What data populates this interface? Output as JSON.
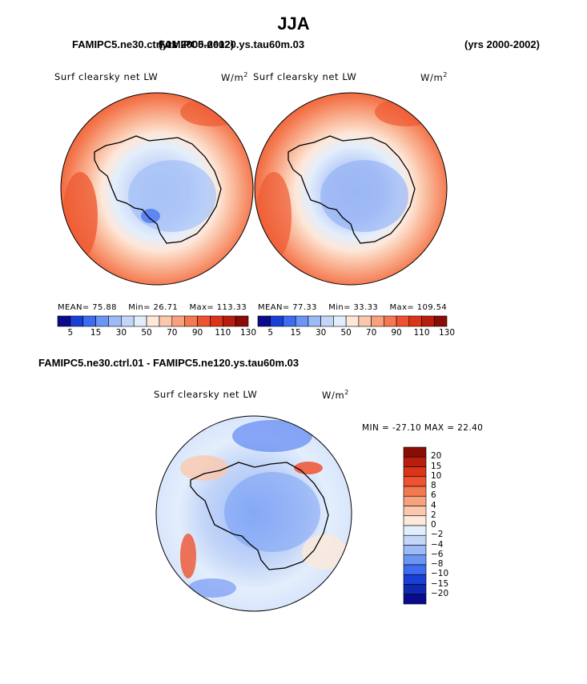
{
  "main_title": "JJA",
  "panels": [
    {
      "case": "FAMIPC5.ne30.ctrl.01",
      "years": "(yrs 2000-2002)",
      "variable": "Surf clearsky net LW",
      "units": "W/m",
      "units_sup": "2",
      "stats": {
        "mean_label": "MEAN=",
        "mean": "75.88",
        "min_label": "Min=",
        "min": "26.71",
        "max_label": "Max=",
        "max": "113.33"
      }
    },
    {
      "case": "FAMIPC5.ne120.ys.tau60m.03",
      "years": "(yrs 2000-2002)",
      "variable": "Surf clearsky net LW",
      "units": "W/m",
      "units_sup": "2",
      "stats": {
        "mean_label": "MEAN=",
        "mean": "77.33",
        "min_label": "Min=",
        "min": "33.33",
        "max_label": "Max=",
        "max": "109.54"
      }
    }
  ],
  "field_colorbar": {
    "labels": [
      "5",
      "15",
      "30",
      "50",
      "70",
      "90",
      "110",
      "130"
    ],
    "colors": [
      "#0a0a8c",
      "#1a3fd6",
      "#3d6cf0",
      "#6a95f5",
      "#9bbaf7",
      "#c4d6f8",
      "#e3eefc",
      "#fde8da",
      "#fbc8ad",
      "#f8a17e",
      "#f47950",
      "#ee5230",
      "#dc3418",
      "#b81e0e",
      "#8a0c06"
    ]
  },
  "diff_panel": {
    "title": "FAMIPC5.ne30.ctrl.01 - FAMIPC5.ne120.ys.tau60m.03",
    "variable": "Surf clearsky net LW",
    "units": "W/m",
    "units_sup": "2",
    "minmax_text": "MIN = -27.10 MAX =  22.40",
    "colorbar": {
      "labels": [
        "20",
        "15",
        "10",
        "8",
        "6",
        "4",
        "2",
        "0",
        "-2",
        "-4",
        "-6",
        "-8",
        "-10",
        "-15",
        "-20"
      ],
      "colors": [
        "#8a0c06",
        "#b81e0e",
        "#dc3418",
        "#ee5230",
        "#f47950",
        "#f8a17e",
        "#fbc8ad",
        "#fde8da",
        "#e3eefc",
        "#c4d6f8",
        "#9bbaf7",
        "#6a95f5",
        "#3d6cf0",
        "#1a3fd6",
        "#0e28b0",
        "#0a0a8c"
      ]
    }
  }
}
